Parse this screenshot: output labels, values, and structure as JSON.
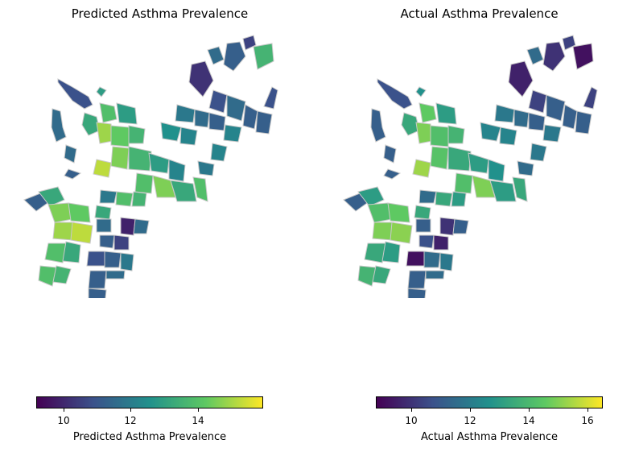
{
  "panels": [
    {
      "title": "Predicted Asthma Prevalence",
      "colorbar": {
        "label": "Predicted Asthma Prevalence",
        "min": 9.1,
        "max": 15.9,
        "ticks": [
          "10",
          "12",
          "14"
        ],
        "tick_values": [
          10,
          12,
          14
        ]
      }
    },
    {
      "title": "Actual Asthma Prevalence",
      "colorbar": {
        "label": "Actual Asthma Prevalence",
        "min": 8.8,
        "max": 16.5,
        "ticks": [
          "10",
          "12",
          "14",
          "16"
        ],
        "tick_values": [
          10,
          12,
          14,
          16
        ]
      }
    }
  ],
  "colormap": "viridis",
  "colors": {
    "cmap_stops": [
      "#440154",
      "#3b528b",
      "#21918c",
      "#5ec962",
      "#fde725"
    ],
    "boundary": "#c8c8c8"
  }
}
